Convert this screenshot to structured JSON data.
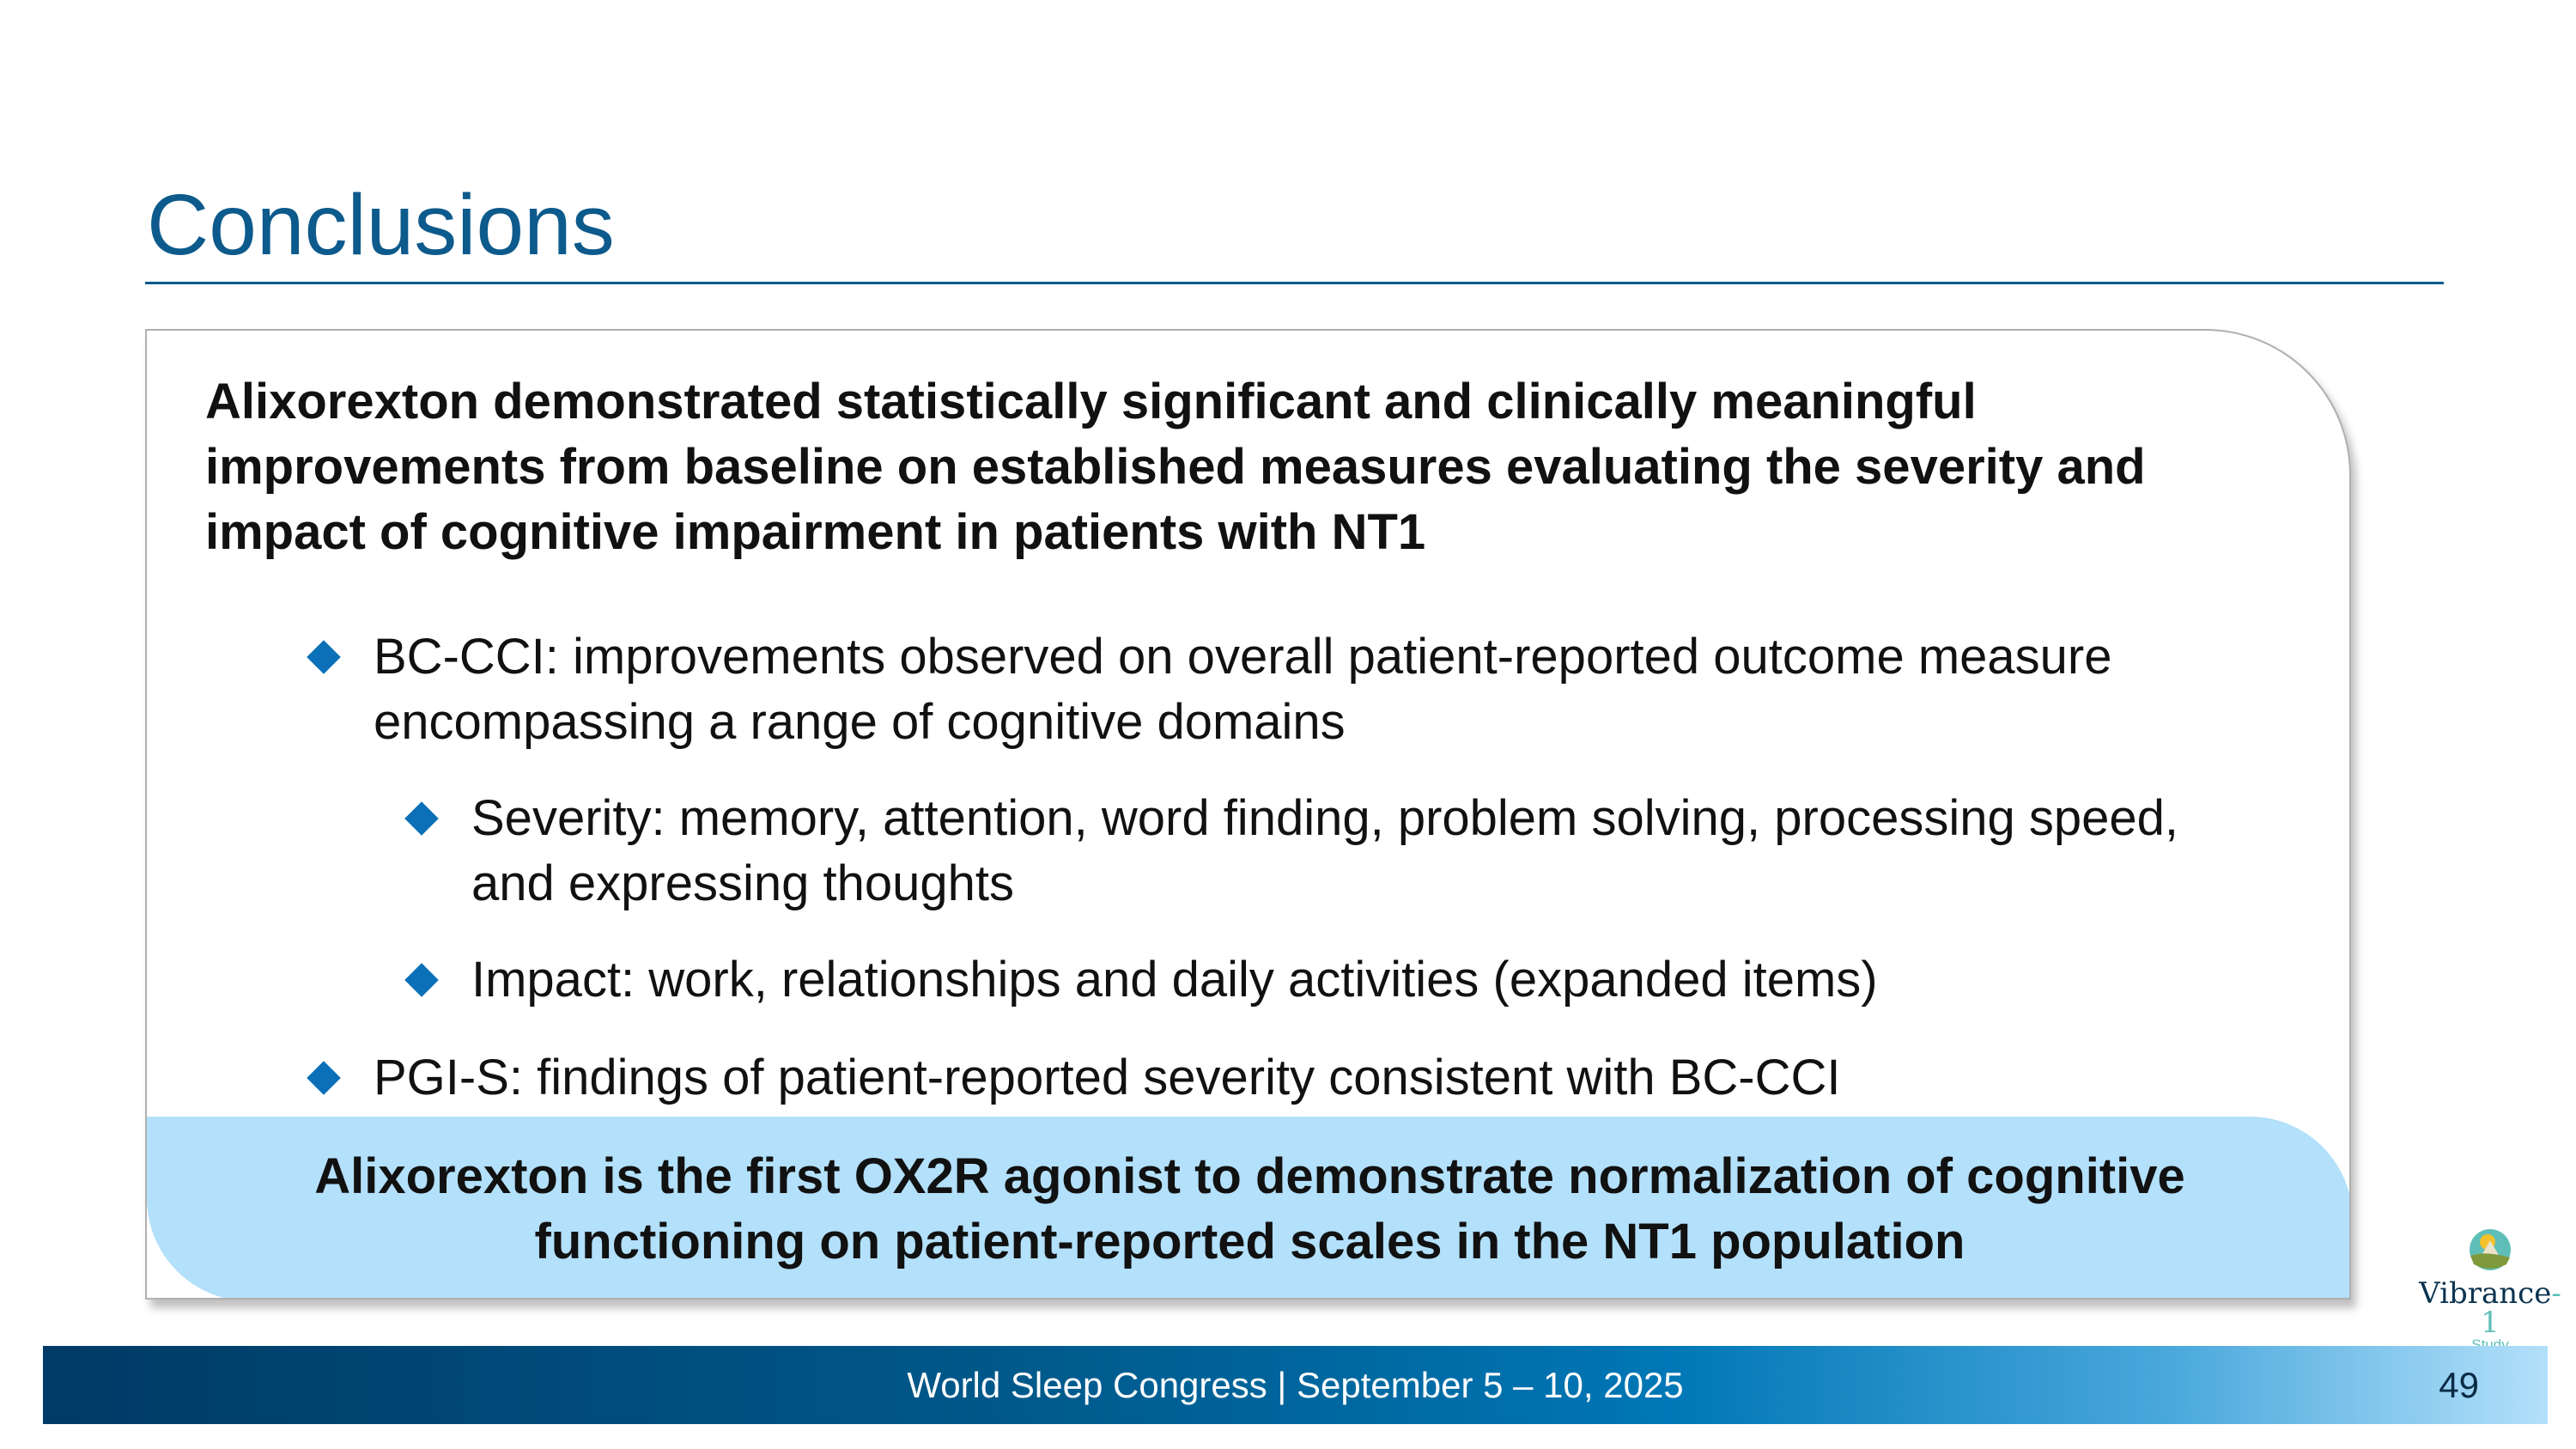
{
  "title": "Conclusions",
  "heading": "Alixorexton demonstrated statistically significant and clinically meaningful improvements from baseline on established measures evaluating the severity and impact of cognitive impairment in patients with NT1",
  "bullets": [
    {
      "level": 1,
      "text": "BC-CCI: improvements observed on overall patient-reported outcome measure encompassing a range of cognitive domains"
    },
    {
      "level": 2,
      "text": "Severity: memory, attention, word finding, problem solving, processing speed, and expressing thoughts"
    },
    {
      "level": 2,
      "text": "Impact: work, relationships and daily activities (expanded items)"
    },
    {
      "level": 1,
      "text": "PGI-S: findings of patient-reported severity consistent with BC-CCI"
    }
  ],
  "callout": "Alixorexton is the first OX2R agonist to demonstrate normalization of cognitive functioning on patient-reported scales in the NT1 population",
  "footer": {
    "text": "World Sleep Congress | September 5 – 10, 2025",
    "page_number": "49"
  },
  "logo": {
    "name": "Vibrance",
    "suffix": "-1",
    "sub": "Study"
  },
  "colors": {
    "title": "#0d5a8c",
    "bullet": "#0b70b8",
    "callout_bg": "#b3e0fa"
  }
}
